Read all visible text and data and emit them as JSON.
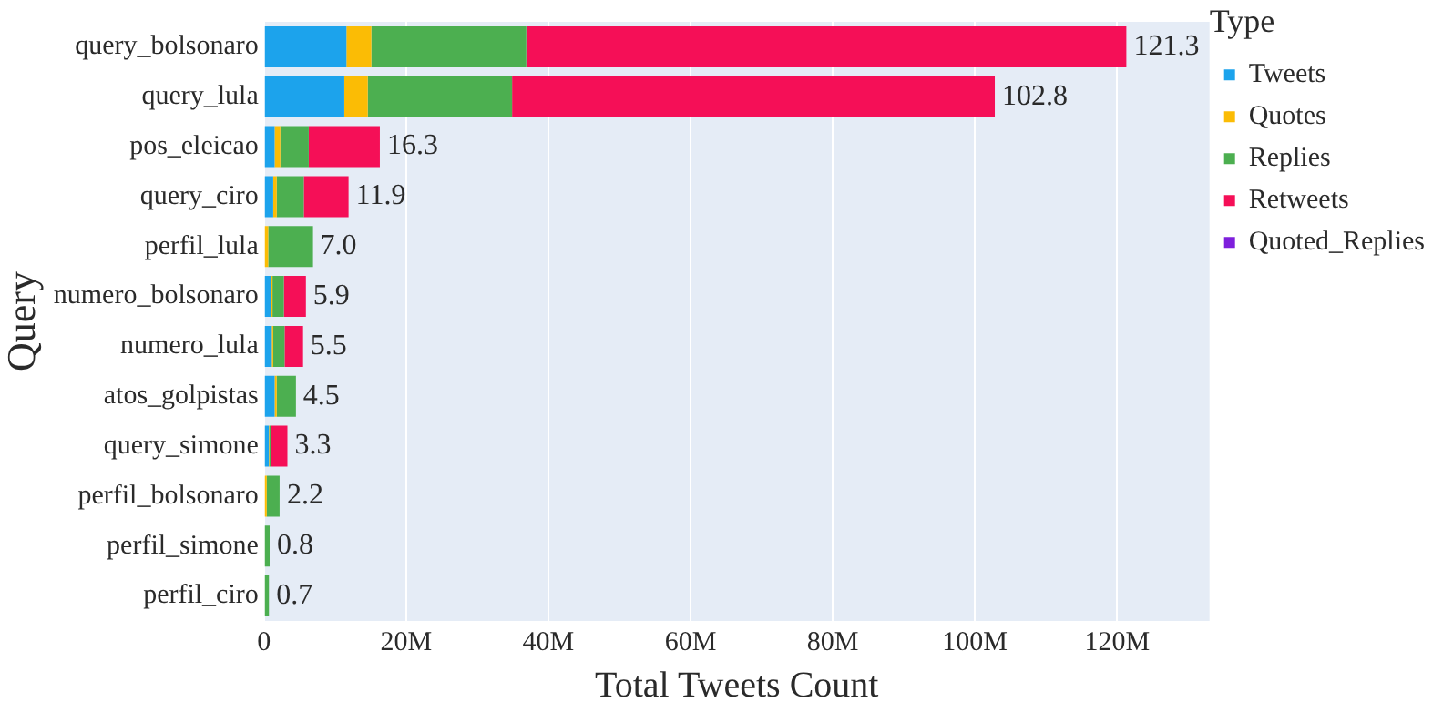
{
  "chart_data": {
    "type": "bar",
    "orientation": "horizontal",
    "stacked": true,
    "xlabel": "Total Tweets Count",
    "ylabel": "Query",
    "legend_title": "Type",
    "legend": "top right",
    "grid": "x",
    "categories": [
      "query_bolsonaro",
      "query_lula",
      "pos_eleicao",
      "query_ciro",
      "perfil_lula",
      "numero_bolsonaro",
      "numero_lula",
      "atos_golpistas",
      "query_simone",
      "perfil_bolsonaro",
      "perfil_simone",
      "perfil_ciro"
    ],
    "series": [
      {
        "name": "Tweets",
        "color": "#1ca3ec",
        "values": [
          11.6,
          11.3,
          1.5,
          1.3,
          0,
          1.0,
          1.1,
          1.5,
          0.7,
          0,
          0,
          0
        ]
      },
      {
        "name": "Quotes",
        "color": "#fbbc05",
        "values": [
          3.5,
          3.3,
          0.8,
          0.5,
          0.6,
          0.2,
          0.2,
          0.3,
          0.1,
          0.4,
          0,
          0
        ]
      },
      {
        "name": "Replies",
        "color": "#4caf50",
        "values": [
          21.8,
          20.3,
          4.0,
          3.8,
          6.3,
          1.6,
          1.6,
          2.7,
          0.2,
          1.8,
          0.8,
          0.7
        ]
      },
      {
        "name": "Retweets",
        "color": "#f50f57",
        "values": [
          84.4,
          67.9,
          10.0,
          6.3,
          0,
          3.1,
          2.6,
          0,
          2.3,
          0,
          0,
          0
        ]
      },
      {
        "name": "Quoted_Replies",
        "color": "#7e1fdc",
        "values": [
          0,
          0,
          0,
          0,
          0,
          0,
          0,
          0,
          0,
          0,
          0,
          0
        ]
      }
    ],
    "totals": [
      "121.3",
      "102.8",
      "16.3",
      "11.9",
      "7.0",
      "5.9",
      "5.5",
      "4.5",
      "3.3",
      "2.2",
      "0.8",
      "0.7"
    ],
    "xlim": [
      0,
      133
    ],
    "xticks": [
      0,
      {
        "value": 20,
        "label": "20M"
      },
      {
        "value": 40,
        "label": "40M"
      },
      {
        "value": 60,
        "label": "60M"
      },
      {
        "value": 80,
        "label": "80M"
      },
      {
        "value": 100,
        "label": "100M"
      },
      {
        "value": 120,
        "label": "120M"
      }
    ]
  }
}
